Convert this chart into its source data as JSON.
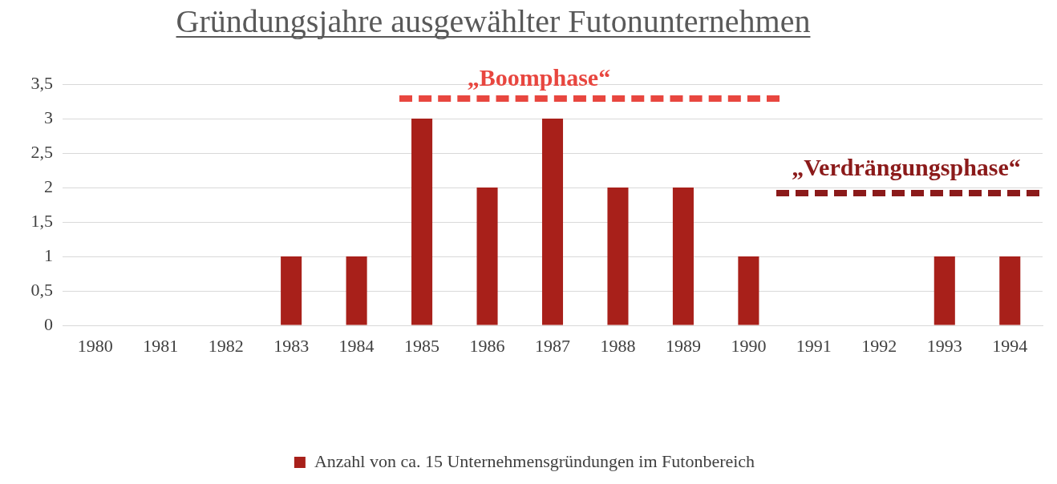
{
  "chart_data": {
    "type": "bar",
    "title": "Gründungsjahre ausgewählter Futonunternehmen",
    "categories": [
      "1980",
      "1981",
      "1982",
      "1983",
      "1984",
      "1985",
      "1986",
      "1987",
      "1988",
      "1989",
      "1990",
      "1991",
      "1992",
      "1993",
      "1994"
    ],
    "series": [
      {
        "name": "Anzahl von ca. 15 Unternehmensgründungen im Futonbereich",
        "color": "#a8201a",
        "values": [
          0,
          0,
          0,
          1,
          1,
          3,
          2,
          3,
          2,
          2,
          1,
          0,
          0,
          1,
          1
        ]
      }
    ],
    "ylim": [
      0,
      3.5
    ],
    "yticks": [
      0,
      {
        "value": 0.5,
        "label": "0,5"
      },
      1,
      {
        "value": 1.5,
        "label": "1,5"
      },
      2,
      {
        "value": 2.5,
        "label": "2,5"
      },
      3,
      {
        "value": 3.5,
        "label": "3,5"
      }
    ],
    "grid": "y",
    "legend": "bottom",
    "annotations": [
      "„Boomphase“",
      "„Verdrängungsphase“"
    ]
  }
}
